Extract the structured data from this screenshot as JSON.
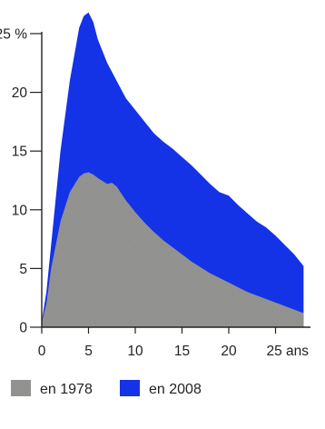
{
  "colors": {
    "background": "#ffffff",
    "axis": "#222222",
    "text": "#222222"
  },
  "chart_data": {
    "type": "area",
    "title": "",
    "xlabel": "",
    "ylabel": "",
    "xlim": [
      0,
      30
    ],
    "ylim": [
      0,
      25
    ],
    "x_unit_label": "ans",
    "y_unit_label": "%",
    "x_ticks": [
      0,
      5,
      10,
      15,
      20,
      25
    ],
    "y_ticks": [
      0,
      5,
      10,
      15,
      20,
      25
    ],
    "x_tick_labels": [
      "0",
      "5",
      "10",
      "15",
      "20",
      "25 ans"
    ],
    "y_tick_labels": [
      "0",
      "5",
      "10",
      "15",
      "20",
      "25 %"
    ],
    "grid": false,
    "legend_position": "bottom",
    "series": [
      {
        "name": "en 2008",
        "color": "#1432e6",
        "x": [
          0,
          0.5,
          1,
          2,
          3,
          4,
          4.5,
          5,
          5.5,
          6,
          7,
          8,
          9,
          10,
          11,
          12,
          13,
          14,
          15,
          16,
          17,
          18,
          19,
          20,
          21,
          22,
          23,
          24,
          25,
          26,
          27,
          28
        ],
        "values": [
          0.5,
          3,
          7,
          15,
          21,
          25.5,
          26.5,
          26.8,
          26,
          24.5,
          22.5,
          21,
          19.5,
          18.5,
          17.5,
          16.5,
          15.8,
          15.2,
          14.5,
          13.8,
          13.0,
          12.2,
          11.5,
          11.2,
          10.4,
          9.7,
          9.0,
          8.5,
          7.8,
          7.0,
          6.2,
          5.2
        ]
      },
      {
        "name": "en 1978",
        "color": "#8c8c8a",
        "x": [
          0,
          0.5,
          1,
          2,
          3,
          4,
          4.5,
          5,
          5.5,
          6,
          7,
          7.5,
          8,
          9,
          10,
          11,
          12,
          13,
          14,
          15,
          16,
          17,
          18,
          19,
          20,
          21,
          22,
          23,
          24,
          25,
          26,
          27,
          28
        ],
        "values": [
          0.4,
          2,
          5,
          9,
          11.5,
          12.8,
          13.1,
          13.2,
          13.0,
          12.7,
          12.2,
          12.3,
          12.0,
          10.8,
          9.8,
          8.9,
          8.1,
          7.4,
          6.8,
          6.2,
          5.6,
          5.1,
          4.6,
          4.2,
          3.8,
          3.4,
          3.0,
          2.7,
          2.4,
          2.1,
          1.8,
          1.5,
          1.2
        ]
      }
    ]
  },
  "legend": {
    "items": [
      {
        "label": "en 1978",
        "color": "#8c8c8a"
      },
      {
        "label": "en 2008",
        "color": "#1432e6"
      }
    ]
  }
}
